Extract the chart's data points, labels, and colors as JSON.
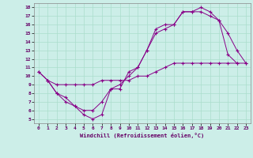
{
  "xlabel": "Windchill (Refroidissement éolien,°C)",
  "background_color": "#cceee8",
  "grid_color": "#aaddcc",
  "line_color": "#880088",
  "xlim": [
    -0.5,
    23.5
  ],
  "ylim": [
    4.5,
    18.5
  ],
  "xticks": [
    0,
    1,
    2,
    3,
    4,
    5,
    6,
    7,
    8,
    9,
    10,
    11,
    12,
    13,
    14,
    15,
    16,
    17,
    18,
    19,
    20,
    21,
    22,
    23
  ],
  "yticks": [
    5,
    6,
    7,
    8,
    9,
    10,
    11,
    12,
    13,
    14,
    15,
    16,
    17,
    18
  ],
  "curves": [
    {
      "x": [
        0,
        1,
        2,
        3,
        4,
        5,
        6,
        7,
        8,
        9,
        10,
        11,
        12,
        13,
        14,
        15,
        16,
        17,
        18,
        19,
        20,
        21,
        22,
        23
      ],
      "y": [
        10.5,
        9.5,
        8.0,
        7.0,
        6.5,
        5.5,
        5.0,
        5.5,
        8.5,
        8.5,
        10.5,
        11.0,
        13.0,
        15.0,
        15.5,
        16.0,
        17.5,
        17.5,
        17.5,
        17.0,
        16.5,
        15.0,
        13.0,
        11.5
      ]
    },
    {
      "x": [
        0,
        1,
        2,
        3,
        4,
        5,
        6,
        7,
        8,
        9,
        10,
        11,
        12,
        13,
        14,
        15,
        16,
        17,
        18,
        19,
        20,
        21,
        22
      ],
      "y": [
        10.5,
        9.5,
        8.0,
        7.5,
        6.5,
        6.0,
        6.0,
        7.0,
        8.5,
        9.0,
        10.0,
        11.0,
        13.0,
        15.5,
        16.0,
        16.0,
        17.5,
        17.5,
        18.0,
        17.5,
        16.5,
        12.5,
        11.5
      ]
    },
    {
      "x": [
        1,
        2,
        3,
        4,
        5,
        6,
        7,
        8,
        9,
        10,
        11,
        12,
        13,
        14,
        15,
        16,
        17,
        18,
        19,
        20,
        21,
        22,
        23
      ],
      "y": [
        9.5,
        9.0,
        9.0,
        9.0,
        9.0,
        9.0,
        9.5,
        9.5,
        9.5,
        9.5,
        10.0,
        10.0,
        10.5,
        11.0,
        11.5,
        11.5,
        11.5,
        11.5,
        11.5,
        11.5,
        11.5,
        11.5,
        11.5
      ]
    }
  ]
}
